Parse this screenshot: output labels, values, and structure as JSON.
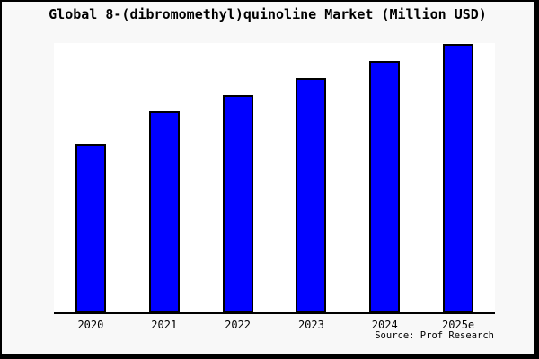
{
  "title": "Global 8-(dibromomethyl)quinoline Market (Million USD)",
  "source_note": "Source: Prof Research",
  "colors": {
    "bar_fill": "#0000ff",
    "bar_border": "#000000",
    "frame_border": "#000000",
    "background": "#f8f8f8",
    "plot_background": "#ffffff",
    "axis": "#000000",
    "text": "#000000"
  },
  "chart_data": {
    "type": "bar",
    "title": "Global 8-(dibromomethyl)quinoline Market (Million USD)",
    "categories": [
      "2020",
      "2021",
      "2022",
      "2023",
      "2024",
      "2025e"
    ],
    "values": [
      62.5,
      74.8,
      81.1,
      87.4,
      93.7,
      100
    ],
    "values_note": "Chart shows no numeric y-axis, gridlines or data labels; values are relative bar heights expressed as % of the tallest (2025e) bar",
    "unit": "Million USD",
    "xlabel": "",
    "ylabel": "",
    "ylim": [
      0,
      100
    ],
    "grid": false,
    "legend": "none",
    "source": "Source: Prof Research"
  }
}
